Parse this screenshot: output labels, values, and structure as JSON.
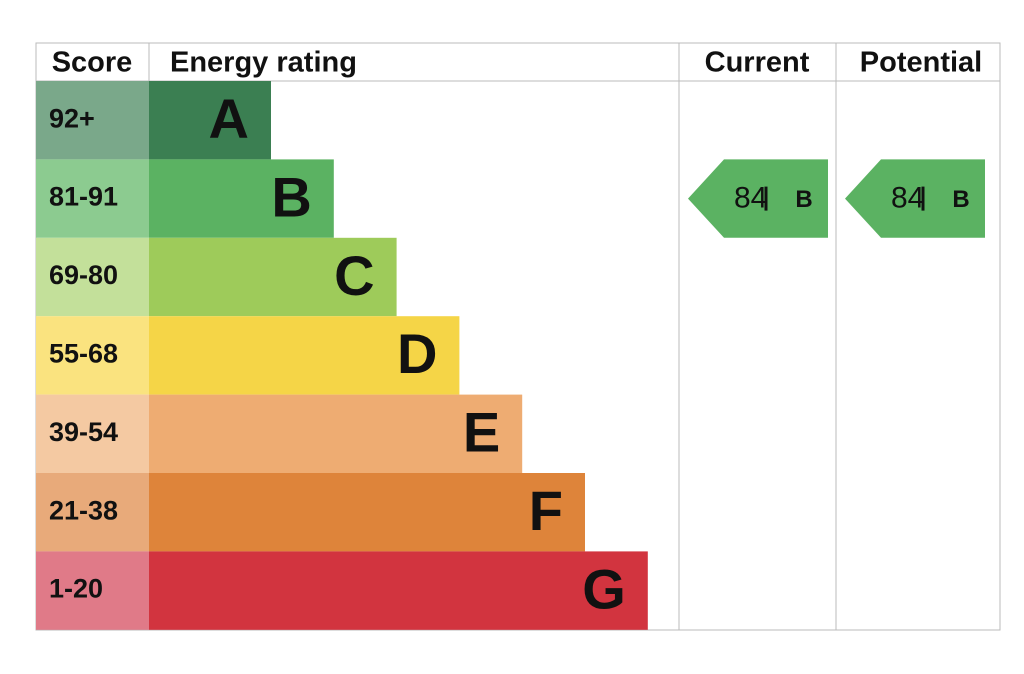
{
  "header": {
    "score": "Score",
    "rating": "Energy rating",
    "current": "Current",
    "potential": "Potential"
  },
  "bands": [
    {
      "score": "92+",
      "letter": "A",
      "color": "#3b7f52",
      "light": "#7aa88a"
    },
    {
      "score": "81-91",
      "letter": "B",
      "color": "#5bb262",
      "light": "#8ccb90"
    },
    {
      "score": "69-80",
      "letter": "C",
      "color": "#9ecb5a",
      "light": "#c3e09a"
    },
    {
      "score": "55-68",
      "letter": "D",
      "color": "#f5d547",
      "light": "#fae37f"
    },
    {
      "score": "39-54",
      "letter": "E",
      "color": "#eeac72",
      "light": "#f4c9a2"
    },
    {
      "score": "21-38",
      "letter": "F",
      "color": "#de843a",
      "light": "#e8aa7a"
    },
    {
      "score": "1-20",
      "letter": "G",
      "color": "#d2343f",
      "light": "#e07a88"
    }
  ],
  "current": {
    "score": "84",
    "rating": "B"
  },
  "potential": {
    "score": "84",
    "rating": "B"
  }
}
